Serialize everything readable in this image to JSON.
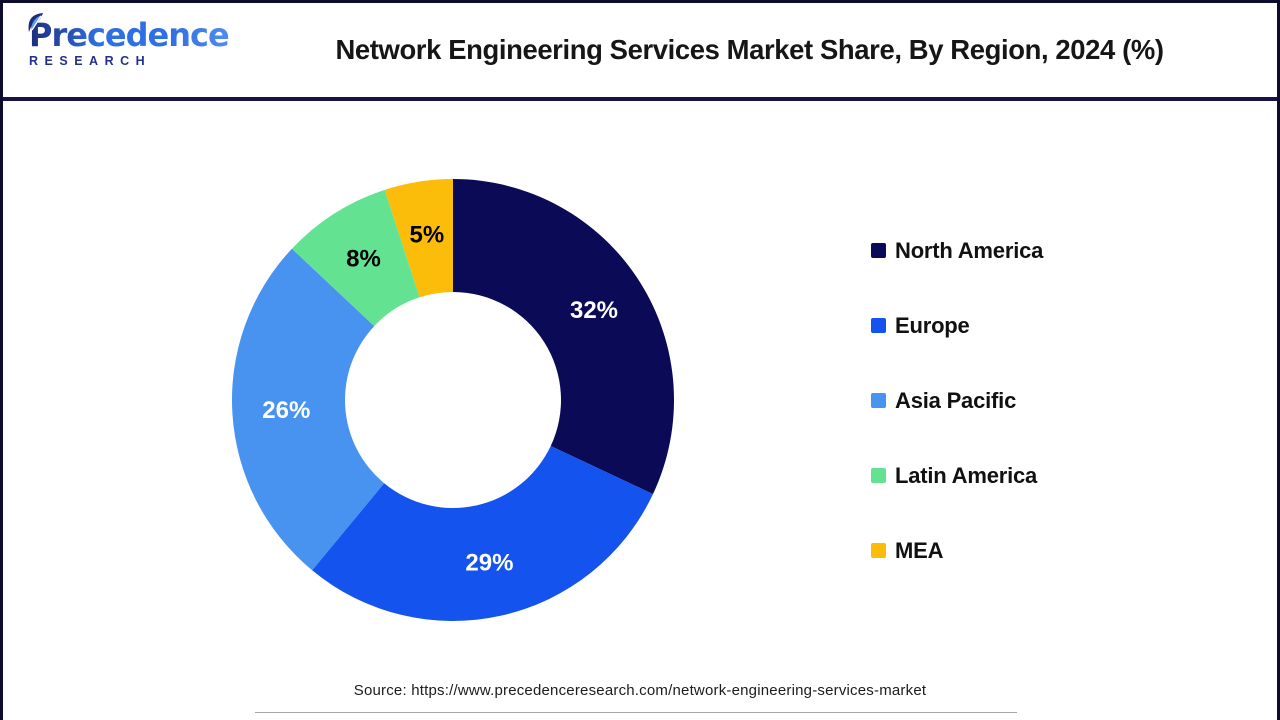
{
  "header": {
    "logo": {
      "brand": "Precedence",
      "sub": "RESEARCH"
    },
    "title": "Network Engineering Services Market Share, By Region, 2024 (%)"
  },
  "chart_data": {
    "type": "pie",
    "donut": true,
    "title": "Network Engineering Services Market Share, By Region, 2024 (%)",
    "start_angle_deg": 0,
    "direction": "clockwise",
    "inner_radius_ratio": 0.49,
    "legend_position": "right",
    "categories": [
      "North America",
      "Europe",
      "Asia Pacific",
      "Latin America",
      "MEA"
    ],
    "values": [
      32,
      29,
      26,
      8,
      5
    ],
    "slices": [
      {
        "label": "North America",
        "value": 32,
        "display": "32%",
        "color": "#0a0a56",
        "label_color": "#ffffff"
      },
      {
        "label": "Europe",
        "value": 29,
        "display": "29%",
        "color": "#1453ee",
        "label_color": "#ffffff"
      },
      {
        "label": "Asia Pacific",
        "value": 26,
        "display": "26%",
        "color": "#4892f0",
        "label_color": "#ffffff"
      },
      {
        "label": "Latin America",
        "value": 8,
        "display": "8%",
        "color": "#63e392",
        "label_color": "#000000"
      },
      {
        "label": "MEA",
        "value": 5,
        "display": "5%",
        "color": "#fcbd0a",
        "label_color": "#000000"
      }
    ]
  },
  "footer": {
    "source": "Source: https://www.precedenceresearch.com/network-engineering-services-market"
  }
}
